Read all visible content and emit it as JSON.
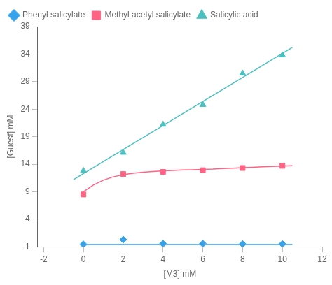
{
  "chart_data": {
    "type": "scatter",
    "xlabel": "[M3] mM",
    "ylabel": "[Guest] mM",
    "xlim": [
      -2.3,
      12
    ],
    "ylim": [
      -1,
      39
    ],
    "xticks": [
      -2,
      0,
      2,
      4,
      6,
      8,
      10,
      12
    ],
    "yticks": [
      -1,
      4,
      9,
      14,
      19,
      24,
      29,
      34,
      39
    ],
    "grid": false,
    "legend": "upper left",
    "series": [
      {
        "name": "Phenyl salicylate",
        "marker": "diamond",
        "x": [
          0,
          2,
          4,
          6,
          8,
          10
        ],
        "values": [
          -0.55,
          0.3,
          -0.45,
          -0.45,
          -0.5,
          -0.5
        ],
        "fit_x": [
          0,
          10.5
        ],
        "fit_y": [
          -0.6,
          -0.6
        ]
      },
      {
        "name": "Methyl acetyl salicylate",
        "marker": "square",
        "x": [
          0,
          2,
          4,
          6,
          8,
          10
        ],
        "values": [
          8.5,
          12.2,
          12.6,
          12.9,
          13.3,
          13.7
        ],
        "fit_x": [
          0,
          0.5,
          1.0,
          1.5,
          2.0,
          2.5,
          3.0,
          3.5,
          4.0,
          4.5,
          5.0,
          5.5,
          6.0,
          6.5,
          7.0,
          7.5,
          8.0,
          8.5,
          9.0,
          9.5,
          10.0,
          10.5
        ],
        "fit_y": [
          9.0,
          10.2,
          11.1,
          11.7,
          12.1,
          12.35,
          12.55,
          12.68,
          12.78,
          12.87,
          12.94,
          13.0,
          13.05,
          13.1,
          13.2,
          13.28,
          13.36,
          13.44,
          13.52,
          13.58,
          13.65,
          13.72
        ]
      },
      {
        "name": "Salicylic acid",
        "marker": "triangle",
        "x": [
          0,
          2,
          4,
          6,
          8,
          10
        ],
        "values": [
          12.8,
          16.1,
          21.2,
          24.8,
          30.5,
          33.8
        ],
        "fit_x": [
          -0.5,
          10.5
        ],
        "fit_y": [
          11.2,
          35.2
        ]
      }
    ]
  }
}
